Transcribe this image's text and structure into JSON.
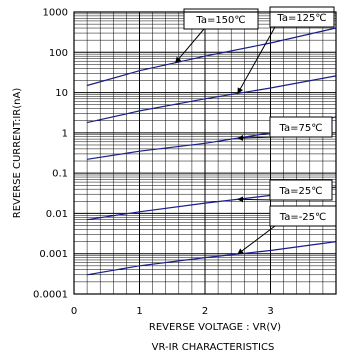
{
  "chart_data": {
    "type": "line",
    "title": "VR-IR CHARACTERISTICS",
    "xlabel": "REVERSE VOLTAGE : VR(V)",
    "ylabel": "REVERSE CURRENT:IR(nA)",
    "xlim": [
      0,
      4
    ],
    "ylim": [
      0.0001,
      1000
    ],
    "yscale": "log",
    "grid": true,
    "x_ticks": [
      "0",
      "1",
      "2",
      "3"
    ],
    "y_ticks": [
      "1000",
      "100",
      "10",
      "1",
      "0.1",
      "0.01",
      "0.001",
      "0.0001"
    ],
    "series": [
      {
        "name": "Ta=150℃",
        "x": [
          0.2,
          1,
          2,
          3,
          4
        ],
        "y": [
          15,
          35,
          80,
          170,
          400
        ]
      },
      {
        "name": "Ta=125℃",
        "x": [
          0.2,
          1,
          2,
          3,
          4
        ],
        "y": [
          1.8,
          3.5,
          7,
          13,
          26
        ]
      },
      {
        "name": "Ta=75℃",
        "x": [
          0.2,
          1,
          2,
          3,
          4
        ],
        "y": [
          0.22,
          0.35,
          0.55,
          1,
          2.5
        ]
      },
      {
        "name": "Ta=25℃",
        "x": [
          0.2,
          1,
          2,
          3,
          4
        ],
        "y": [
          0.007,
          0.011,
          0.018,
          0.028,
          0.045
        ]
      },
      {
        "name": "Ta=-25℃",
        "x": [
          0.2,
          1,
          2,
          3,
          4
        ],
        "y": [
          0.0003,
          0.0005,
          0.0008,
          0.0012,
          0.002
        ]
      }
    ],
    "callouts": [
      {
        "label": "Ta=150℃",
        "series": "Ta=150℃",
        "target_x": 1.55
      },
      {
        "label": "Ta=125℃",
        "series": "Ta=125℃",
        "target_x": 2.5
      },
      {
        "label": "Ta=75℃",
        "series": "Ta=75℃",
        "target_x": 2.5
      },
      {
        "label": "Ta=25℃",
        "series": "Ta=25℃",
        "target_x": 2.5
      },
      {
        "label": "Ta=-25℃",
        "series": "Ta=-25℃",
        "target_x": 2.5
      }
    ]
  }
}
